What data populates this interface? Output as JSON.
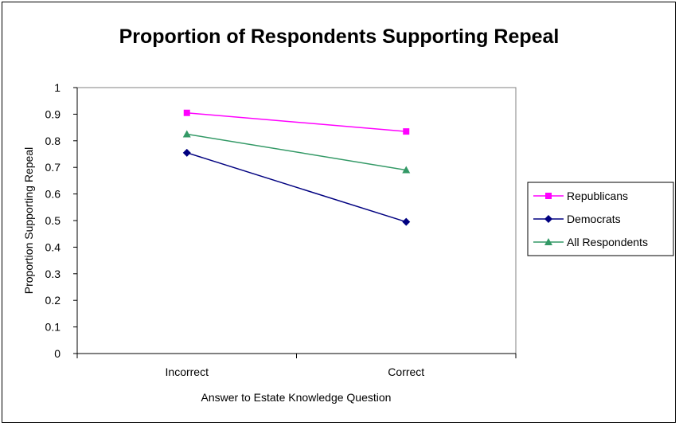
{
  "chart_data": {
    "type": "line",
    "title": "Proportion of Respondents Supporting Repeal",
    "xlabel": "Answer to Estate Knowledge Question",
    "ylabel": "Proportion Supporting Repeal",
    "categories": [
      "Incorrect",
      "Correct"
    ],
    "ylim": [
      0,
      1
    ],
    "yticks": [
      "0",
      "0.1",
      "0.2",
      "0.3",
      "0.4",
      "0.5",
      "0.6",
      "0.7",
      "0.8",
      "0.9",
      "1"
    ],
    "grid": false,
    "legend_position": "right",
    "series": [
      {
        "name": "Republicans",
        "values": [
          0.905,
          0.835
        ],
        "color": "#ff00ff",
        "marker": "square"
      },
      {
        "name": "Democrats",
        "values": [
          0.755,
          0.495
        ],
        "color": "#000080",
        "marker": "diamond"
      },
      {
        "name": "All Respondents",
        "values": [
          0.825,
          0.69
        ],
        "color": "#339966",
        "marker": "triangle"
      }
    ]
  }
}
